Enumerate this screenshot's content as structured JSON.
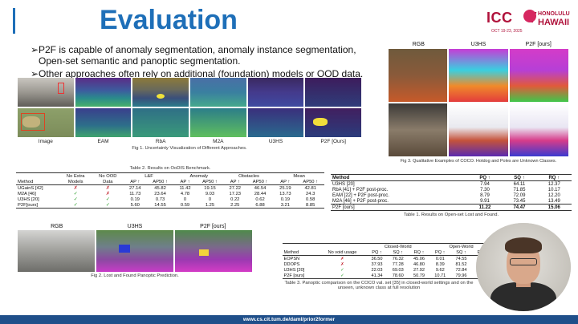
{
  "slide": {
    "title": "Evaluation",
    "logo": {
      "brand": "ICCV",
      "place_small": "HONOLULU",
      "place": "HAWAII",
      "date": "OCT 19-23, 2025"
    },
    "bullets": [
      "P2F is capable of anomaly segmentation, anomaly instance segmentation, Open-set semantic and panoptic segmentation.",
      "Other approaches often rely on additional (foundation) models or OOD data."
    ],
    "bullet_mark": "➢",
    "footer_url": "www.cs.cit.tum.de/daml/prior2former"
  },
  "fig1": {
    "labels": [
      "Image",
      "EAM",
      "RbA",
      "M2A",
      "U3HS",
      "P2F [Ours]"
    ],
    "caption": "Fig 1. Uncertainty Visualization of Different Approaches."
  },
  "fig3": {
    "columns": [
      "RGB",
      "U3HS",
      "P2F [ours]"
    ],
    "caption": "Fig 3. Qualitative Examples of COCO. Hotdog and Poles are Unknown Classes."
  },
  "fig2": {
    "columns": [
      "RGB",
      "U3HS",
      "P2F [ours]"
    ],
    "caption": "Fig 2. Lost and Found Panoptic Prediction."
  },
  "table2": {
    "caption": "Table 2. Results on OoDIS Benchmark.",
    "group_headers": [
      "No Extra",
      "No OOD",
      "L&F",
      "Anomaly",
      "Obstacles",
      "Mean"
    ],
    "sub_headers": [
      "Method",
      "Models",
      "Data",
      "AP ↑",
      "AP50 ↑",
      "AP ↑",
      "AP50 ↑",
      "AP ↑",
      "AP50 ↑",
      "AP ↑",
      "AP50 ↑"
    ],
    "rows": [
      {
        "method": "UGainS [42]",
        "extra": "✗",
        "ood": "✗",
        "v": [
          "27.14",
          "45.82",
          "11.42",
          "19.15",
          "27.22",
          "46.54",
          "25.19",
          "42.81"
        ]
      },
      {
        "method": "M2A [46]",
        "extra": "✓",
        "ood": "✗",
        "v": [
          "11.73",
          "23.64",
          "4.78",
          "9.03",
          "17.23",
          "28.44",
          "13.73",
          "24.3"
        ]
      },
      {
        "method": "U3HS [20]",
        "extra": "✓",
        "ood": "✓",
        "v": [
          "0.19",
          "0.73",
          "0",
          "0",
          "0.22",
          "0.62",
          "0.19",
          "0.58"
        ]
      },
      {
        "method": "P2F[ours]",
        "extra": "✓",
        "ood": "✓",
        "v": [
          "5.60",
          "14.55",
          "0.59",
          "1.25",
          "2.25",
          "6.88",
          "3.21",
          "8.85"
        ]
      }
    ]
  },
  "table1": {
    "caption": "Table 1. Results on Open-set Lost and Found.",
    "headers": [
      "Method",
      "PQ ↑",
      "SQ ↑",
      "RQ ↑"
    ],
    "rows": [
      {
        "method": "U3HS [20]",
        "v": [
          "7.94",
          "64.11",
          "12.37"
        ]
      },
      {
        "method": "RbA [41] + P2F post-proc.",
        "v": [
          "7.30",
          "71.85",
          "10.17"
        ]
      },
      {
        "method": "EAM [22] + P2F post-proc.",
        "v": [
          "8.79",
          "72.09",
          "12.20"
        ]
      },
      {
        "method": "M2A [46] + P2F post-proc.",
        "v": [
          "9.91",
          "73.45",
          "13.49"
        ]
      },
      {
        "method": "P2F [ours]",
        "v": [
          "11.22",
          "74.47",
          "15.06"
        ]
      }
    ]
  },
  "table3": {
    "caption": "Table 3. Panoptic comparison on the COCO val. set [35] in closed-world settings and on the unseen, unknown class at full resolution",
    "group_headers": [
      "Closed-World",
      "Open-World"
    ],
    "sub_headers": [
      "Method",
      "No void usage",
      "PQ ↑",
      "SQ ↑",
      "RQ ↑",
      "PQ ↑",
      "SQ ↑",
      "RQ ↑"
    ],
    "rows": [
      {
        "method": "EOPSN",
        "void": "✗",
        "v": [
          "36.50",
          "76.32",
          "45.06",
          "0.01",
          "74.55",
          "0.01"
        ]
      },
      {
        "method": "DDOPS",
        "void": "✗",
        "v": [
          "37.93",
          "77.28",
          "46.80",
          "8.39",
          "81.52",
          "10.29"
        ]
      },
      {
        "method": "U3HS [20]",
        "void": "✓",
        "v": [
          "22.03",
          "69.03",
          "27.92",
          "9.62",
          "72.84",
          "13.20"
        ]
      },
      {
        "method": "P2F [ours]",
        "void": "✓",
        "v": [
          "41.34",
          "78.60",
          "50.79",
          "10.71",
          "79.96",
          "13.39"
        ]
      }
    ]
  }
}
